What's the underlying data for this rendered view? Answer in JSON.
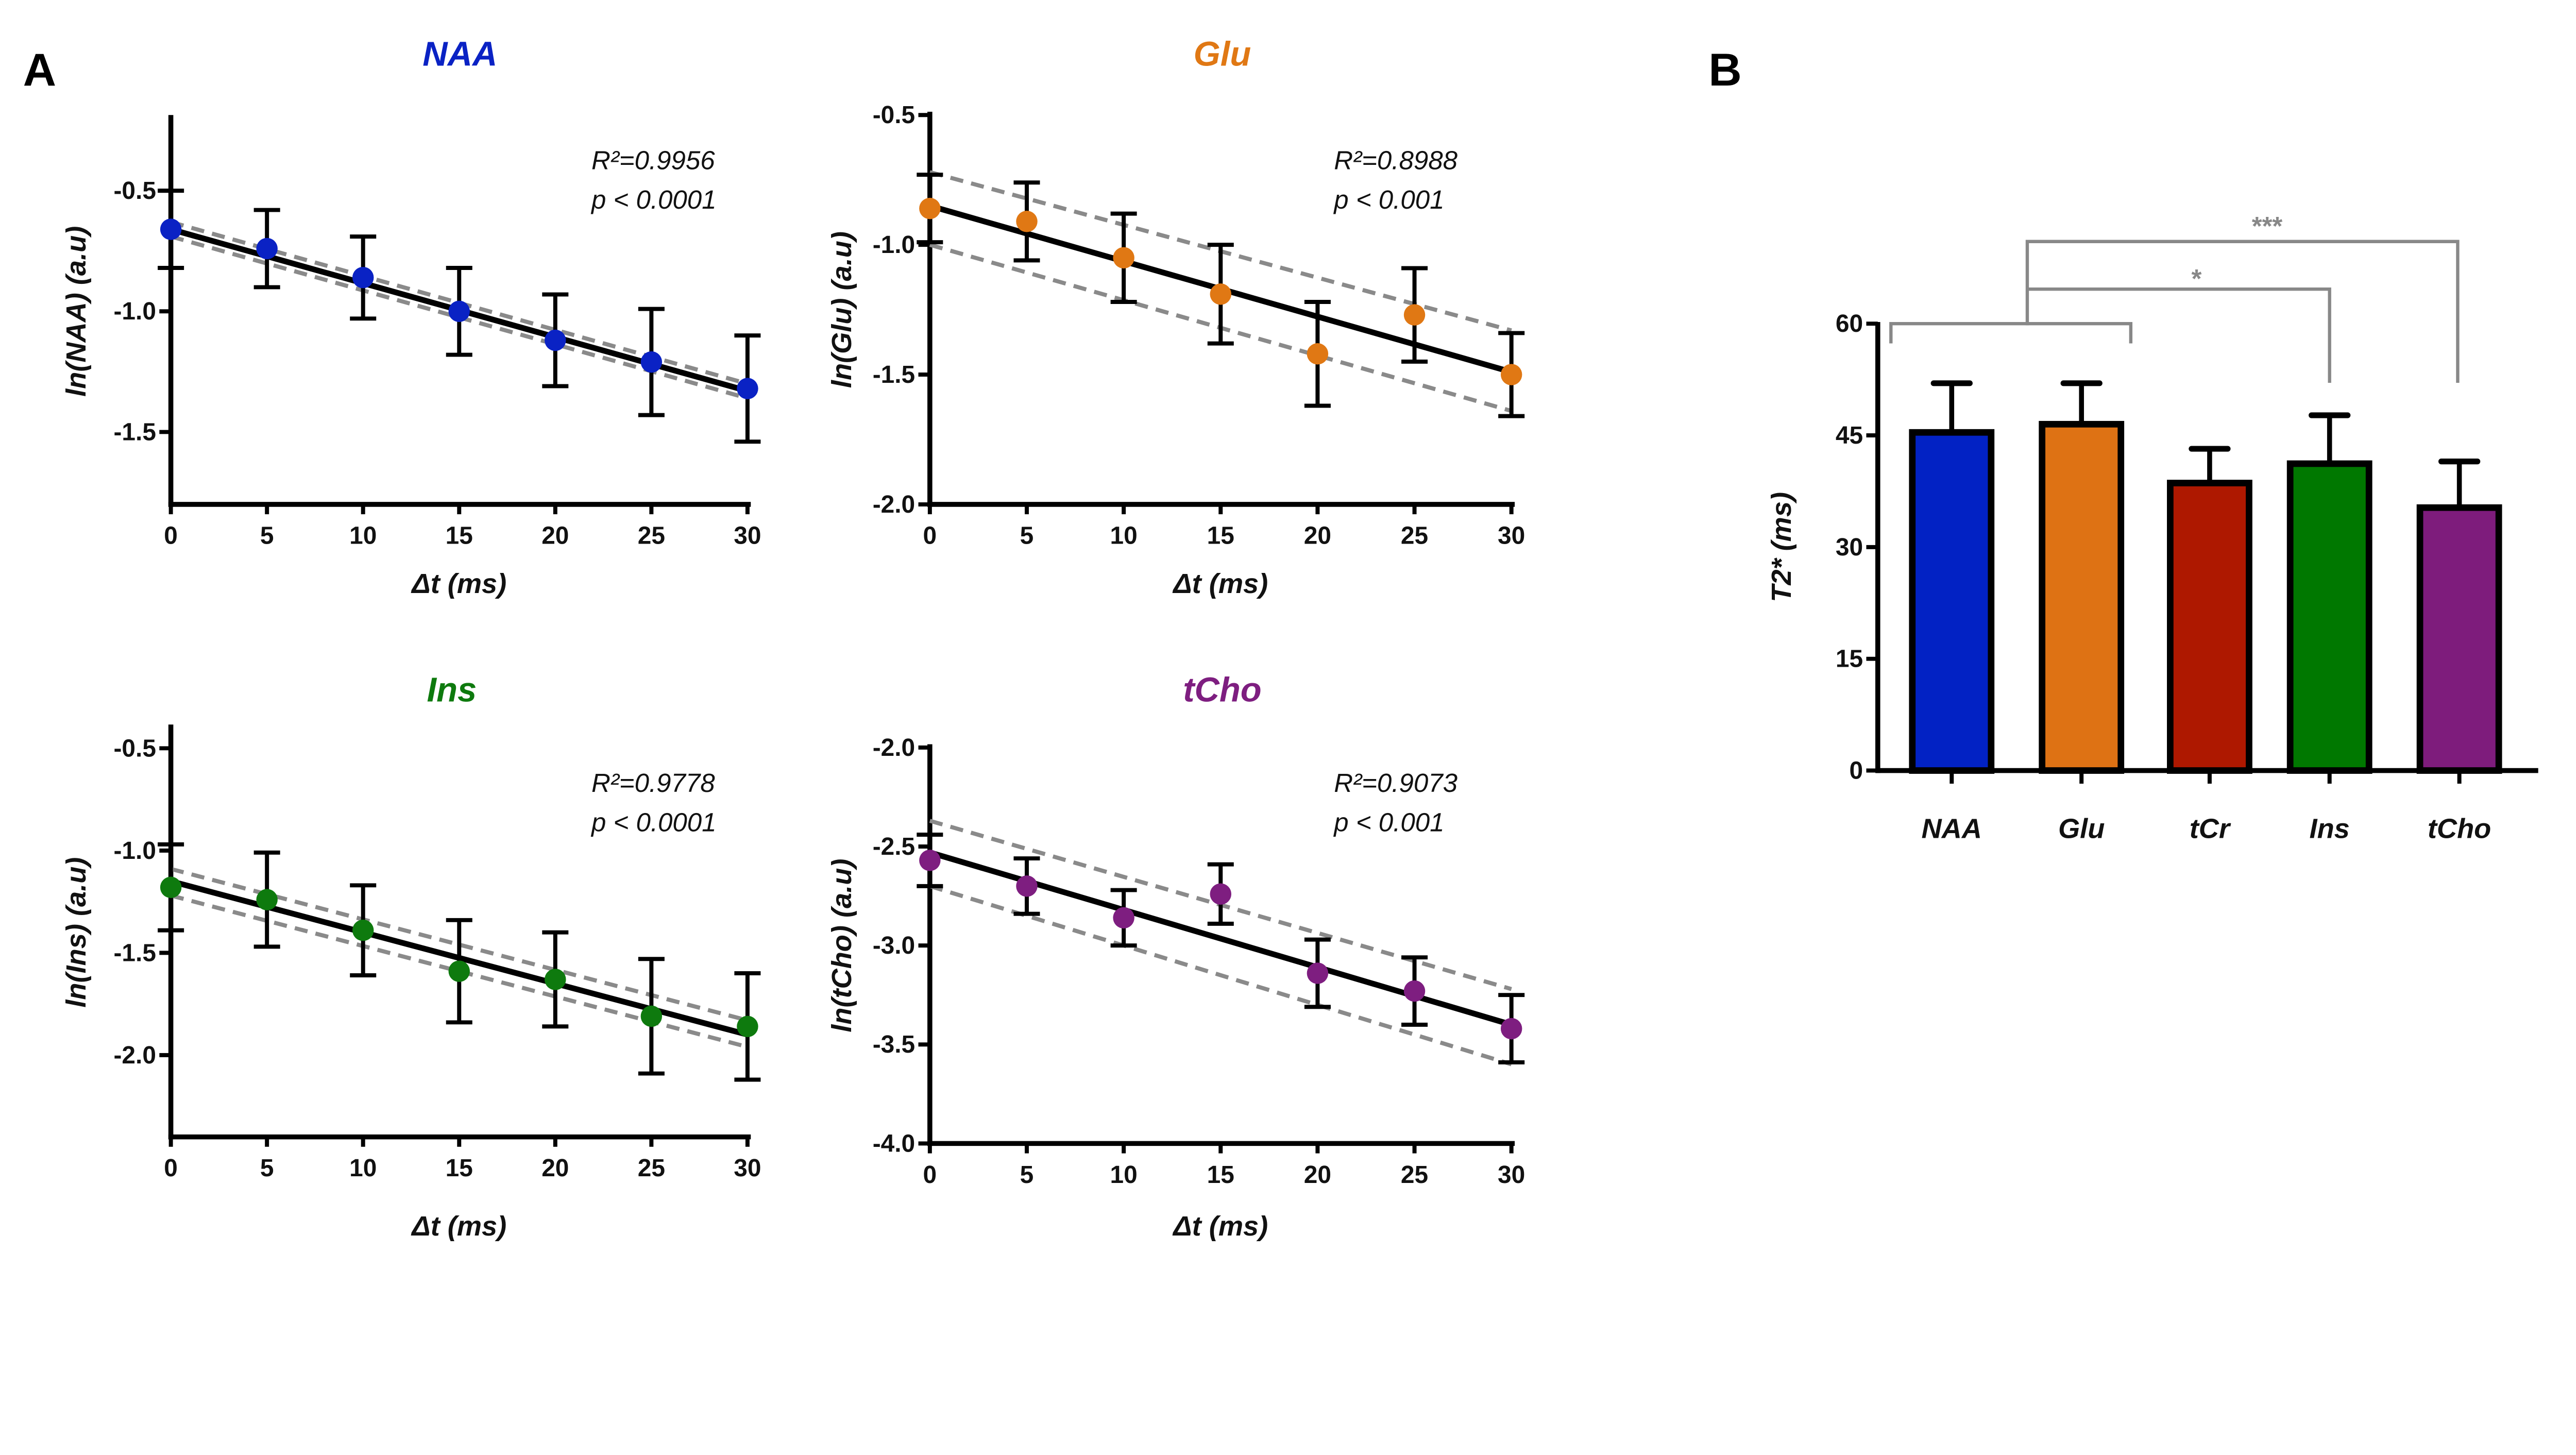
{
  "panel_labels": {
    "a": "A",
    "b": "B"
  },
  "chart_data": [
    {
      "type": "scatter",
      "title": "NAA",
      "title_color": "#0a22c4",
      "xlabel": "Δt (ms)",
      "ylabel": "ln(NAA) (a.u)",
      "xlim": [
        0,
        30
      ],
      "ylim": [
        -1.8,
        -0.2
      ],
      "xticks": [
        "0",
        "5",
        "10",
        "15",
        "20",
        "25",
        "30"
      ],
      "yticks": [
        "-0.5",
        "-1.0",
        "-1.5"
      ],
      "annotation": [
        "R²=0.9956",
        "p < 0.0001"
      ],
      "point_color": "#0a22c4",
      "points": [
        {
          "x": 0,
          "y": -0.66,
          "err": 0.16
        },
        {
          "x": 5,
          "y": -0.74,
          "err": 0.16
        },
        {
          "x": 10,
          "y": -0.86,
          "err": 0.17
        },
        {
          "x": 15,
          "y": -1.0,
          "err": 0.18
        },
        {
          "x": 20,
          "y": -1.12,
          "err": 0.19
        },
        {
          "x": 25,
          "y": -1.21,
          "err": 0.22
        },
        {
          "x": 30,
          "y": -1.32,
          "err": 0.22
        }
      ],
      "fit": [
        -0.66,
        -1.33
      ],
      "ci_upper": [
        -0.63,
        -1.3
      ],
      "ci_lower": [
        -0.69,
        -1.36
      ]
    },
    {
      "type": "scatter",
      "title": "Glu",
      "title_color": "#e07814",
      "xlabel": "Δt (ms)",
      "ylabel": "ln(Glu) (a.u)",
      "xlim": [
        0,
        30
      ],
      "ylim": [
        -2.0,
        -0.5
      ],
      "xticks": [
        "0",
        "5",
        "10",
        "15",
        "20",
        "25",
        "30"
      ],
      "yticks": [
        "-0.5",
        "-1.0",
        "-1.5",
        "-2.0"
      ],
      "annotation": [
        "R²=0.8988",
        "p < 0.001"
      ],
      "point_color": "#e07814",
      "points": [
        {
          "x": 0,
          "y": -0.86,
          "err": 0.13
        },
        {
          "x": 5,
          "y": -0.91,
          "err": 0.15
        },
        {
          "x": 10,
          "y": -1.05,
          "err": 0.17
        },
        {
          "x": 15,
          "y": -1.19,
          "err": 0.19
        },
        {
          "x": 20,
          "y": -1.42,
          "err": 0.2
        },
        {
          "x": 25,
          "y": -1.27,
          "err": 0.18
        },
        {
          "x": 30,
          "y": -1.5,
          "err": 0.16
        }
      ],
      "fit": [
        -0.85,
        -1.49
      ],
      "ci_upper": [
        -0.72,
        -1.33
      ],
      "ci_lower": [
        -1.0,
        -1.64
      ]
    },
    {
      "type": "scatter",
      "title": "Ins",
      "title_color": "#0e7a0e",
      "xlabel": "Δt (ms)",
      "ylabel": "ln(Ins) (a.u)",
      "xlim": [
        0,
        30
      ],
      "ylim": [
        -2.4,
        -0.4
      ],
      "xticks": [
        "0",
        "5",
        "10",
        "15",
        "20",
        "25",
        "30"
      ],
      "yticks": [
        "-0.5",
        "-1.0",
        "-1.5",
        "-2.0"
      ],
      "annotation": [
        "R²=0.9778",
        "p < 0.0001"
      ],
      "point_color": "#0e7a0e",
      "points": [
        {
          "x": 0,
          "y": -1.18,
          "err": 0.21
        },
        {
          "x": 5,
          "y": -1.24,
          "err": 0.23
        },
        {
          "x": 10,
          "y": -1.39,
          "err": 0.22
        },
        {
          "x": 15,
          "y": -1.59,
          "err": 0.25
        },
        {
          "x": 20,
          "y": -1.63,
          "err": 0.23
        },
        {
          "x": 25,
          "y": -1.81,
          "err": 0.28
        },
        {
          "x": 30,
          "y": -1.86,
          "err": 0.26
        }
      ],
      "fit": [
        -1.15,
        -1.9
      ],
      "ci_upper": [
        -1.09,
        -1.83
      ],
      "ci_lower": [
        -1.22,
        -1.96
      ]
    },
    {
      "type": "scatter",
      "title": "tCho",
      "title_color": "#7e1e80",
      "xlabel": "Δt (ms)",
      "ylabel": "ln(tCho) (a.u)",
      "xlim": [
        0,
        30
      ],
      "ylim": [
        -4.0,
        -2.0
      ],
      "xticks": [
        "0",
        "5",
        "10",
        "15",
        "20",
        "25",
        "30"
      ],
      "yticks": [
        "-2.0",
        "-2.5",
        "-3.0",
        "-3.5",
        "-4.0"
      ],
      "annotation": [
        "R²=0.9073",
        "p < 0.001"
      ],
      "point_color": "#7e1e80",
      "points": [
        {
          "x": 0,
          "y": -2.57,
          "err": 0.13
        },
        {
          "x": 5,
          "y": -2.7,
          "err": 0.14
        },
        {
          "x": 10,
          "y": -2.86,
          "err": 0.14
        },
        {
          "x": 15,
          "y": -2.74,
          "err": 0.15
        },
        {
          "x": 20,
          "y": -3.14,
          "err": 0.17
        },
        {
          "x": 25,
          "y": -3.23,
          "err": 0.17
        },
        {
          "x": 30,
          "y": -3.42,
          "err": 0.17
        }
      ],
      "fit": [
        -2.53,
        -3.4
      ],
      "ci_upper": [
        -2.37,
        -3.22
      ],
      "ci_lower": [
        -2.7,
        -3.6
      ]
    },
    {
      "type": "bar",
      "title": "",
      "xlabel": "",
      "ylabel": "T2* (ms)",
      "ylim": [
        0,
        60
      ],
      "yticks": [
        "0",
        "15",
        "30",
        "45",
        "60"
      ],
      "categories": [
        "NAA",
        "Glu",
        "tCr",
        "Ins",
        "tCho"
      ],
      "values": [
        45.4,
        46.5,
        38.6,
        41.2,
        35.3
      ],
      "errors": [
        6.6,
        5.5,
        4.6,
        6.5,
        6.2
      ],
      "colors": [
        "#0222c4",
        "#de7214",
        "#ae1800",
        "#007800",
        "#7e1c7c"
      ],
      "significance": [
        {
          "group": [
            "NAA",
            "Glu"
          ],
          "vs": "Ins",
          "label": "*"
        },
        {
          "group": [
            "NAA",
            "Glu"
          ],
          "vs": "tCho",
          "label": "***"
        }
      ]
    }
  ]
}
